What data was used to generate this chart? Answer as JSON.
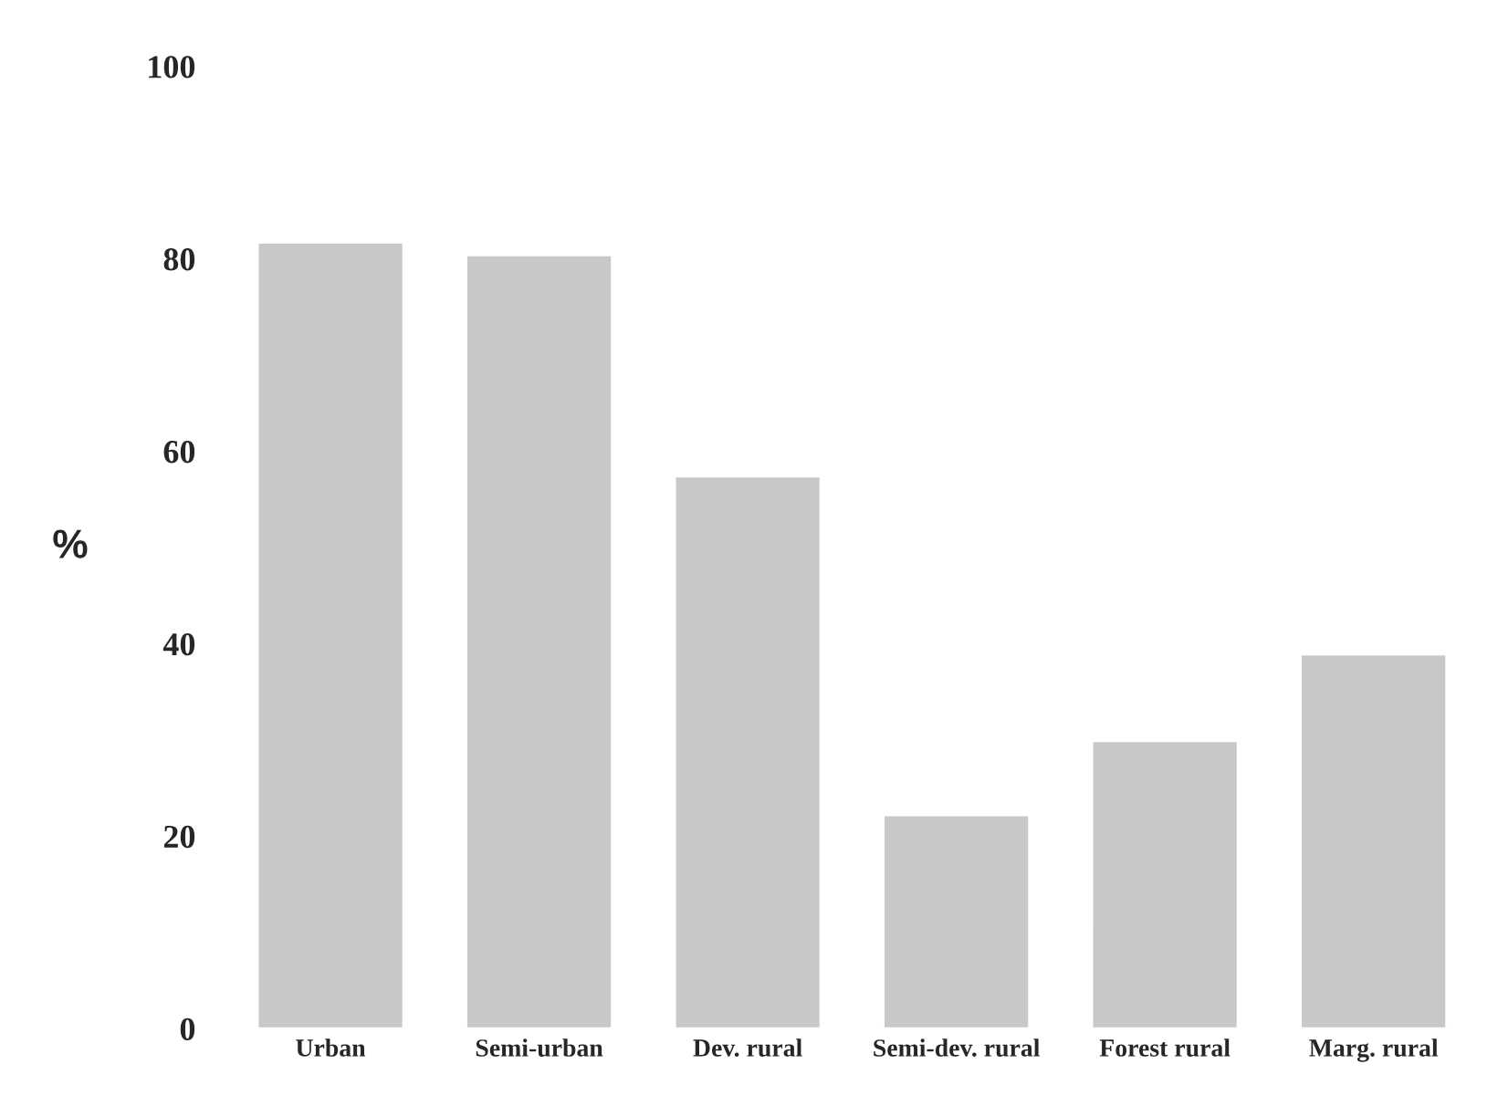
{
  "chart_data": {
    "type": "bar",
    "ylabel": "%",
    "categories": [
      "Urban",
      "Semi-urban",
      "Dev. rural",
      "Semi-dev. rural",
      "Forest rural",
      "Marg. rural"
    ],
    "values": [
      81.7,
      80.4,
      57.4,
      22.2,
      29.9,
      38.9
    ],
    "color": "#c8c8c8",
    "ylim": [
      0,
      100
    ],
    "yticks": [
      0,
      20,
      40,
      60,
      80,
      100
    ],
    "grid": false,
    "legend": false
  }
}
